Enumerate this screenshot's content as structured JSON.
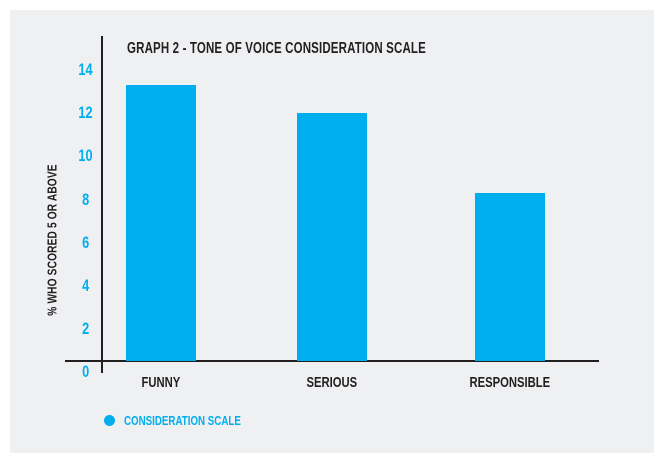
{
  "colors": {
    "accent": "#00aeef",
    "text": "#231f20",
    "panel_background": "#eff0f2",
    "page_background": "#ffffff",
    "axis": "#231f20"
  },
  "chart_data": {
    "type": "bar",
    "title": "GRAPH 2 - TONE OF VOICE CONSIDERATION SCALE",
    "xlabel": "",
    "ylabel": "% WHO SCORED 5 OR ABOVE",
    "categories": [
      "FUNNY",
      "SERIOUS",
      "RESPONSIBLE"
    ],
    "values": [
      13.3,
      12,
      8.3
    ],
    "series": [
      {
        "name": "CONSIDERATION SCALE",
        "values": [
          13.3,
          12,
          8.3
        ],
        "color": "#00aeef"
      }
    ],
    "yticks": [
      14,
      12,
      10,
      8,
      6,
      4,
      2,
      0
    ],
    "ylim": [
      0,
      14.5
    ],
    "grid": false,
    "bar_color": "#00aeef",
    "tick_label_color": "#00aeef",
    "legend": {
      "position": "bottom-left",
      "entries": [
        {
          "label": "CONSIDERATION SCALE",
          "marker": "circle",
          "color": "#00aeef"
        }
      ]
    }
  }
}
